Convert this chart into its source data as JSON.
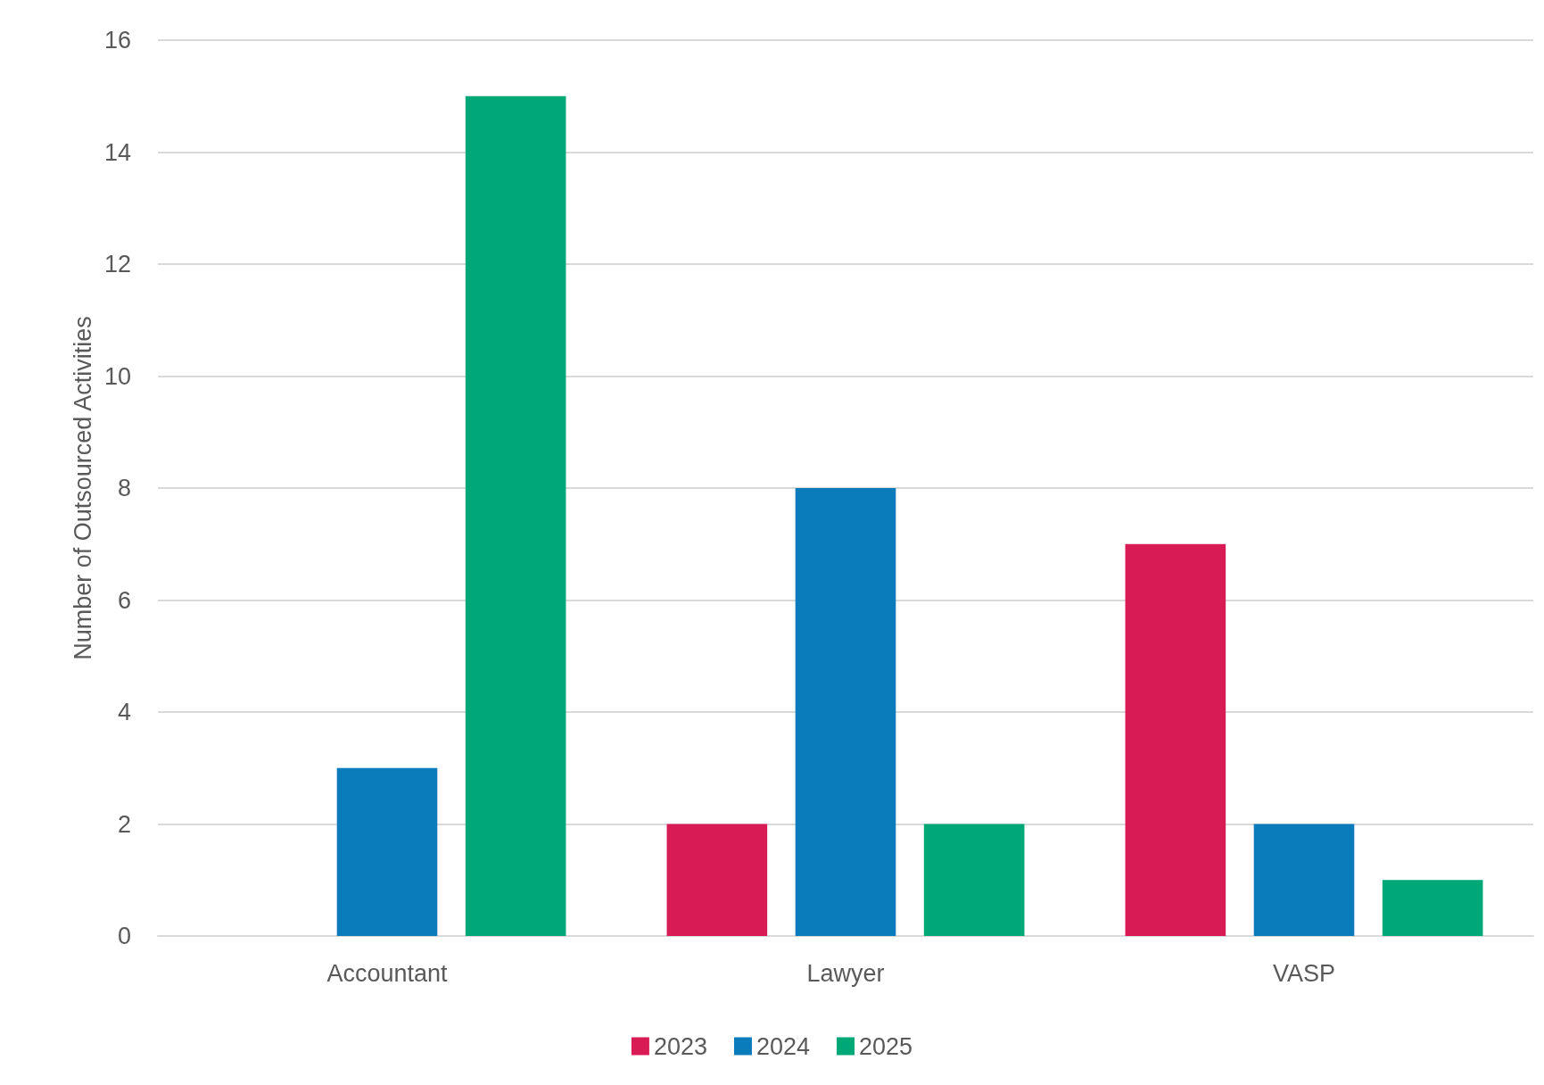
{
  "chart_data": {
    "type": "bar",
    "ylabel": "Number of Outsourced Activities",
    "categories": [
      "Accountant",
      "Lawyer",
      "VASP"
    ],
    "series": [
      {
        "name": "2023",
        "color": "#d81b55",
        "values": [
          0,
          2,
          7
        ]
      },
      {
        "name": "2024",
        "color": "#0a7bbb",
        "values": [
          3,
          8,
          2
        ]
      },
      {
        "name": "2025",
        "color": "#00a878",
        "values": [
          15,
          2,
          1
        ]
      }
    ],
    "ylim": [
      0,
      16
    ],
    "yticks": [
      0,
      2,
      4,
      6,
      8,
      10,
      12,
      14,
      16
    ],
    "grid": "y",
    "legend": "bottom"
  }
}
